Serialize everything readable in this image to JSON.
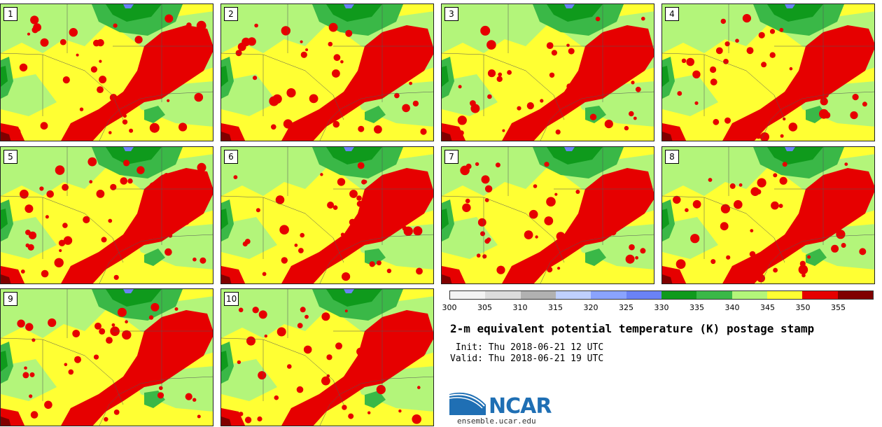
{
  "panels": [
    {
      "label": "1"
    },
    {
      "label": "2"
    },
    {
      "label": "3"
    },
    {
      "label": "4"
    },
    {
      "label": "5"
    },
    {
      "label": "6"
    },
    {
      "label": "7"
    },
    {
      "label": "8"
    },
    {
      "label": "9"
    },
    {
      "label": "10"
    }
  ],
  "colorbar": {
    "ticks": [
      "300",
      "305",
      "310",
      "315",
      "320",
      "325",
      "330",
      "335",
      "340",
      "345",
      "350",
      "355"
    ],
    "colors": [
      "#f3f3f3",
      "#dcdcdc",
      "#b1b1b1",
      "#bfd0ff",
      "#8aa3ff",
      "#6a82f5",
      "#0f9a1c",
      "#3ab847",
      "#b3f57a",
      "#ffff33",
      "#e60000",
      "#800000"
    ]
  },
  "title": "2-m equivalent potential temperature (K) postage stamp",
  "init": " Init: Thu 2018-06-21 12 UTC",
  "valid": "Valid: Thu 2018-06-21 19 UTC",
  "logo": {
    "text": "NCAR",
    "site": "ensemble.ucar.edu"
  }
}
